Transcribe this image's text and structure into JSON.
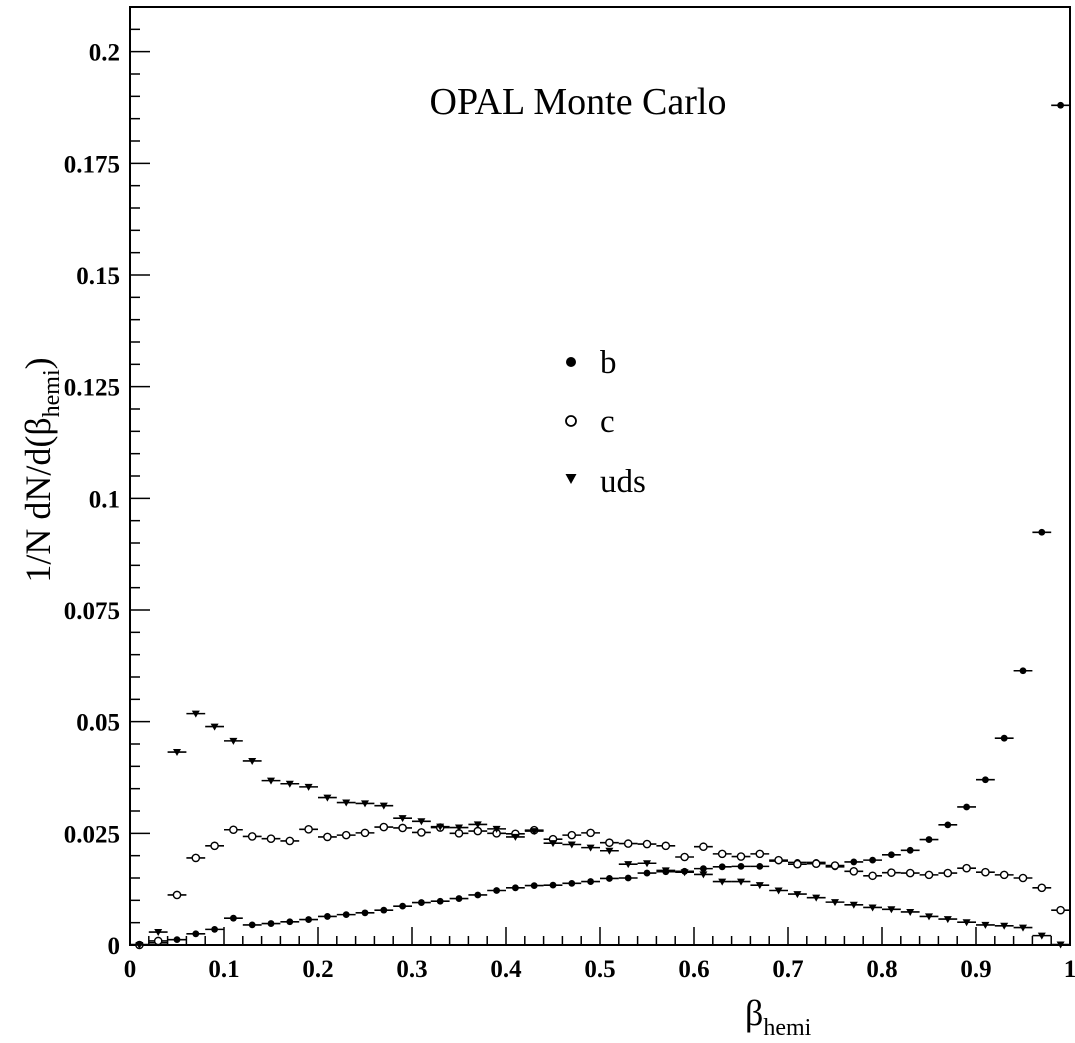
{
  "chart_data": {
    "type": "scatter",
    "title": "OPAL Monte Carlo",
    "xlabel": {
      "main": "β",
      "sub": "hemi"
    },
    "ylabel": {
      "pre": "1/N dN/d(β",
      "sub": "hemi",
      "post": ")"
    },
    "xlim": [
      0,
      1
    ],
    "ylim": [
      0,
      0.21
    ],
    "xticks": [
      "0",
      "0.1",
      "0.2",
      "0.3",
      "0.4",
      "0.5",
      "0.6",
      "0.7",
      "0.8",
      "0.9",
      "1"
    ],
    "xtick_values": [
      0,
      0.1,
      0.2,
      0.3,
      0.4,
      0.5,
      0.6,
      0.7,
      0.8,
      0.9,
      1.0
    ],
    "yticks": [
      "0",
      "0.025",
      "0.05",
      "0.075",
      "0.1",
      "0.125",
      "0.15",
      "0.175",
      "0.2"
    ],
    "ytick_values": [
      0,
      0.025,
      0.05,
      0.075,
      0.1,
      0.125,
      0.15,
      0.175,
      0.2
    ],
    "bin_width": 0.02,
    "grid": false,
    "legend_position": "center",
    "series": [
      {
        "name": "b",
        "marker": "filled-circle",
        "x": [
          0.01,
          0.03,
          0.05,
          0.07,
          0.09,
          0.11,
          0.13,
          0.15,
          0.17,
          0.19,
          0.21,
          0.23,
          0.25,
          0.27,
          0.29,
          0.31,
          0.33,
          0.35,
          0.37,
          0.39,
          0.41,
          0.43,
          0.45,
          0.47,
          0.49,
          0.51,
          0.53,
          0.55,
          0.57,
          0.59,
          0.61,
          0.63,
          0.65,
          0.67,
          0.69,
          0.71,
          0.73,
          0.75,
          0.77,
          0.79,
          0.81,
          0.83,
          0.85,
          0.87,
          0.89,
          0.91,
          0.93,
          0.95,
          0.97,
          0.99
        ],
        "y": [
          0.0001,
          0.0005,
          0.0012,
          0.0025,
          0.0035,
          0.006,
          0.0045,
          0.0048,
          0.0052,
          0.0057,
          0.0064,
          0.0068,
          0.0072,
          0.0078,
          0.0087,
          0.0095,
          0.0098,
          0.0104,
          0.0112,
          0.0122,
          0.0128,
          0.0133,
          0.0134,
          0.0138,
          0.0142,
          0.0149,
          0.015,
          0.0161,
          0.0164,
          0.0165,
          0.0171,
          0.0175,
          0.0176,
          0.0176,
          0.0188,
          0.0185,
          0.0185,
          0.0175,
          0.0186,
          0.019,
          0.0202,
          0.0212,
          0.0236,
          0.0269,
          0.0309,
          0.037,
          0.0463,
          0.0614,
          0.0924,
          0.188
        ]
      },
      {
        "name": "c",
        "marker": "open-circle",
        "x": [
          0.01,
          0.03,
          0.05,
          0.07,
          0.09,
          0.11,
          0.13,
          0.15,
          0.17,
          0.19,
          0.21,
          0.23,
          0.25,
          0.27,
          0.29,
          0.31,
          0.33,
          0.35,
          0.37,
          0.39,
          0.41,
          0.43,
          0.45,
          0.47,
          0.49,
          0.51,
          0.53,
          0.55,
          0.57,
          0.59,
          0.61,
          0.63,
          0.65,
          0.67,
          0.69,
          0.71,
          0.73,
          0.75,
          0.77,
          0.79,
          0.81,
          0.83,
          0.85,
          0.87,
          0.89,
          0.91,
          0.93,
          0.95,
          0.97,
          0.99
        ],
        "y": [
          0.0,
          0.0009,
          0.0112,
          0.0195,
          0.0222,
          0.0258,
          0.0243,
          0.0238,
          0.0233,
          0.0259,
          0.0242,
          0.0246,
          0.0251,
          0.0264,
          0.0262,
          0.0252,
          0.0263,
          0.025,
          0.0255,
          0.025,
          0.0249,
          0.0257,
          0.0237,
          0.0246,
          0.0251,
          0.0229,
          0.0227,
          0.0226,
          0.0222,
          0.0197,
          0.022,
          0.0204,
          0.0198,
          0.0204,
          0.019,
          0.0181,
          0.0182,
          0.0178,
          0.0165,
          0.0155,
          0.0162,
          0.0161,
          0.0157,
          0.0161,
          0.0172,
          0.0163,
          0.0157,
          0.015,
          0.0128,
          0.0078
        ]
      },
      {
        "name": "uds",
        "marker": "down-triangle",
        "x": [
          0.01,
          0.03,
          0.05,
          0.07,
          0.09,
          0.11,
          0.13,
          0.15,
          0.17,
          0.19,
          0.21,
          0.23,
          0.25,
          0.27,
          0.29,
          0.31,
          0.33,
          0.35,
          0.37,
          0.39,
          0.41,
          0.43,
          0.45,
          0.47,
          0.49,
          0.51,
          0.53,
          0.55,
          0.57,
          0.59,
          0.61,
          0.63,
          0.65,
          0.67,
          0.69,
          0.71,
          0.73,
          0.75,
          0.77,
          0.79,
          0.81,
          0.83,
          0.85,
          0.87,
          0.89,
          0.91,
          0.93,
          0.95,
          0.97,
          0.99
        ],
        "y": [
          0.0,
          0.0029,
          0.0432,
          0.0518,
          0.0489,
          0.0457,
          0.0412,
          0.0368,
          0.0361,
          0.0354,
          0.033,
          0.0319,
          0.0317,
          0.0312,
          0.0284,
          0.0277,
          0.0265,
          0.0263,
          0.027,
          0.026,
          0.0242,
          0.0255,
          0.0228,
          0.0225,
          0.0218,
          0.0211,
          0.0181,
          0.0183,
          0.0167,
          0.0163,
          0.0158,
          0.0142,
          0.0142,
          0.0134,
          0.0122,
          0.0114,
          0.0106,
          0.0096,
          0.009,
          0.0084,
          0.008,
          0.0074,
          0.0064,
          0.0058,
          0.0051,
          0.0045,
          0.0043,
          0.0039,
          0.0021,
          0.0001
        ]
      }
    ]
  }
}
